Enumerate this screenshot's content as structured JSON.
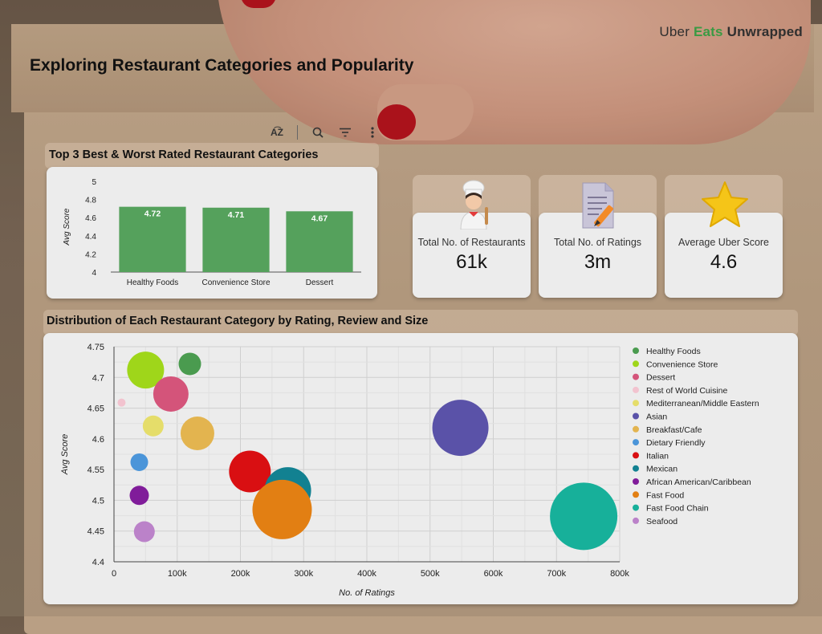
{
  "logo": {
    "part1": "Uber ",
    "part2": "Eats",
    "part3": " Unwrapped"
  },
  "page_title": "Exploring Restaurant Categories and Popularity",
  "toolbar": {
    "sort_label": "A͡Z"
  },
  "kpis": [
    {
      "label": "Total No. of Restaurants",
      "value": "61k",
      "icon": "chef-icon"
    },
    {
      "label": "Total No. of Ratings",
      "value": "3m",
      "icon": "document-pencil-icon"
    },
    {
      "label": "Average Uber Score",
      "value": "4.6",
      "icon": "star-icon"
    }
  ],
  "colors": {
    "bar": "#55a15c",
    "bar_label": "#ffffff",
    "card_bg": "#ececec"
  },
  "chart_data": [
    {
      "type": "bar",
      "title": "Top 3 Best & Worst Rated Restaurant Categories",
      "categories": [
        "Healthy Foods",
        "Convenience Store",
        "Dessert"
      ],
      "values": [
        4.72,
        4.71,
        4.67
      ],
      "value_labels": [
        "4.72",
        "4.71",
        "4.67"
      ],
      "xlabel": "",
      "ylabel": "Avg Score",
      "ylim": [
        4,
        5
      ],
      "yticks": [
        "4",
        "4.2",
        "4.4",
        "4.6",
        "4.8",
        "5"
      ],
      "grid": false,
      "legend": "none"
    },
    {
      "type": "scatter",
      "title": "Distribution of Each Restaurant Category by Rating, Review and Size",
      "xlabel": "No. of Ratings",
      "ylabel": "Avg Score",
      "xlim": [
        0,
        800000
      ],
      "ylim": [
        4.4,
        4.75
      ],
      "xticks": [
        "0",
        "100k",
        "200k",
        "300k",
        "400k",
        "500k",
        "600k",
        "700k",
        "800k"
      ],
      "yticks": [
        "4.4",
        "4.45",
        "4.5",
        "4.55",
        "4.6",
        "4.65",
        "4.7",
        "4.75"
      ],
      "grid": true,
      "legend": "right",
      "series": [
        {
          "name": "Healthy Foods",
          "x": 120000,
          "y": 4.722,
          "size": 14,
          "color": "#4a9b4f"
        },
        {
          "name": "Convenience Store",
          "x": 50000,
          "y": 4.712,
          "size": 23,
          "color": "#9fd61a"
        },
        {
          "name": "Dessert",
          "x": 90000,
          "y": 4.673,
          "size": 22,
          "color": "#d4547a"
        },
        {
          "name": "Rest of World Cuisine",
          "x": 12000,
          "y": 4.659,
          "size": 5,
          "color": "#f2c3cf"
        },
        {
          "name": "Mediterranean/Middle Eastern",
          "x": 62000,
          "y": 4.621,
          "size": 13,
          "color": "#e5dd6a"
        },
        {
          "name": "Asian",
          "x": 548000,
          "y": 4.618,
          "size": 35,
          "color": "#5a52a8"
        },
        {
          "name": "Breakfast/Cafe",
          "x": 132000,
          "y": 4.609,
          "size": 21,
          "color": "#e3b44f"
        },
        {
          "name": "Dietary Friendly",
          "x": 40000,
          "y": 4.562,
          "size": 11,
          "color": "#4b95d9"
        },
        {
          "name": "Italian",
          "x": 215000,
          "y": 4.547,
          "size": 26,
          "color": "#d90f12"
        },
        {
          "name": "Mexican",
          "x": 275000,
          "y": 4.516,
          "size": 29,
          "color": "#128191"
        },
        {
          "name": "African American/Caribbean",
          "x": 40000,
          "y": 4.508,
          "size": 12,
          "color": "#801c9a"
        },
        {
          "name": "Fast Food",
          "x": 266000,
          "y": 4.485,
          "size": 37,
          "color": "#e27f13"
        },
        {
          "name": "Fast Food Chain",
          "x": 743000,
          "y": 4.474,
          "size": 42,
          "color": "#17b09a"
        },
        {
          "name": "Seafood",
          "x": 48000,
          "y": 4.449,
          "size": 13,
          "color": "#bb82c9"
        }
      ]
    }
  ]
}
